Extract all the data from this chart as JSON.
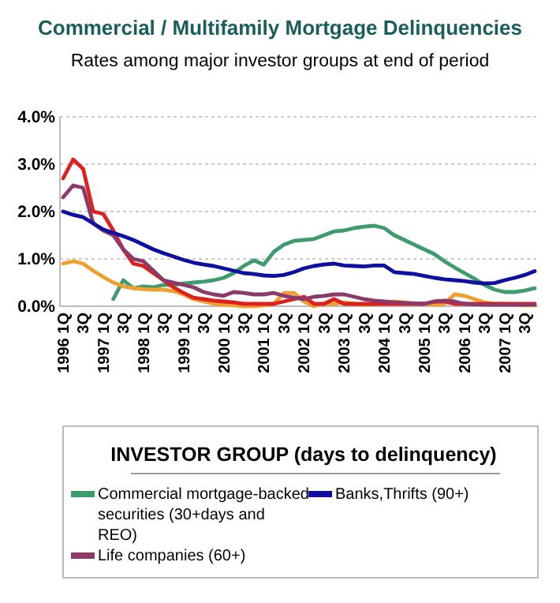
{
  "chart_data": {
    "type": "line",
    "title": "Commercial / Multifamily Mortgage Delinquencies",
    "subtitle": "Rates among major investor groups at end of period",
    "legend_title": "INVESTOR GROUP (days to delinquency)",
    "categories": [
      "1996 1Q",
      null,
      "3Q",
      null,
      "1997 1Q",
      null,
      "3Q",
      null,
      "1998 1Q",
      null,
      "3Q",
      null,
      "1999 1Q",
      null,
      "3Q",
      null,
      "2000 1Q",
      null,
      "3Q",
      null,
      "2001 1Q",
      null,
      "3Q",
      null,
      "2002 1Q",
      null,
      "3Q",
      null,
      "2003 1Q",
      null,
      "3Q",
      null,
      "2004 1Q",
      null,
      "3Q",
      null,
      "2005 1Q",
      null,
      "3Q",
      null,
      "2006 1Q",
      null,
      "3Q",
      null,
      "2007 1Q",
      null,
      "3Q",
      null
    ],
    "series": [
      {
        "name": "Commercial mortgage-backed securities (30+days and REO)",
        "color": "#3f9a6e",
        "values": [
          null,
          null,
          null,
          null,
          null,
          0.15,
          0.55,
          0.38,
          0.42,
          0.4,
          0.45,
          0.45,
          0.48,
          0.5,
          0.52,
          0.55,
          0.6,
          0.7,
          0.85,
          0.97,
          0.88,
          1.15,
          1.3,
          1.38,
          1.4,
          1.42,
          1.5,
          1.58,
          1.6,
          1.65,
          1.68,
          1.7,
          1.65,
          1.5,
          1.4,
          1.3,
          1.2,
          1.1,
          0.95,
          0.82,
          0.7,
          0.58,
          0.45,
          0.35,
          0.3,
          0.3,
          0.33,
          0.38
        ]
      },
      {
        "color": "#f0a030",
        "values": [
          0.9,
          0.95,
          0.9,
          0.75,
          0.62,
          0.5,
          0.42,
          0.38,
          0.36,
          0.35,
          0.35,
          0.32,
          0.25,
          0.15,
          0.1,
          0.05,
          0.03,
          0.02,
          0.0,
          0.0,
          0.02,
          0.05,
          0.28,
          0.28,
          0.1,
          0.0,
          0.05,
          0.05,
          0.08,
          0.05,
          0.03,
          0.05,
          0.08,
          0.1,
          0.08,
          0.06,
          0.05,
          0.03,
          0.05,
          0.25,
          0.22,
          0.15,
          0.08,
          0.05,
          0.05,
          0.03,
          0.02,
          0.02
        ]
      },
      {
        "color": "#dd2020",
        "values": [
          2.7,
          3.1,
          2.9,
          2.0,
          1.95,
          1.6,
          1.2,
          0.9,
          0.85,
          0.7,
          0.55,
          0.4,
          0.28,
          0.18,
          0.15,
          0.12,
          0.1,
          0.08,
          0.05,
          0.05,
          0.05,
          0.05,
          0.1,
          0.15,
          0.2,
          0.05,
          0.05,
          0.15,
          0.05,
          0.05,
          0.05,
          0.05,
          0.05,
          0.05,
          0.05,
          0.05,
          0.05,
          0.1,
          0.1,
          0.05,
          0.05,
          0.05,
          0.05,
          0.05,
          0.05,
          0.05,
          0.05,
          0.05
        ]
      },
      {
        "name": "Life companies (60+)",
        "color": "#8b3a6a",
        "values": [
          2.3,
          2.55,
          2.5,
          1.75,
          1.6,
          1.5,
          1.2,
          1.0,
          0.95,
          0.75,
          0.55,
          0.5,
          0.45,
          0.4,
          0.3,
          0.25,
          0.22,
          0.3,
          0.28,
          0.25,
          0.25,
          0.28,
          0.22,
          0.18,
          0.15,
          0.2,
          0.22,
          0.25,
          0.25,
          0.2,
          0.15,
          0.12,
          0.1,
          0.08,
          0.07,
          0.06,
          0.05,
          0.1,
          0.12,
          0.1,
          0.05,
          0.04,
          0.03,
          0.03,
          0.03,
          0.03,
          0.03,
          0.03
        ]
      },
      {
        "name": "Banks,Thrifts (90+)",
        "color": "#1010a0",
        "values": [
          2.0,
          1.93,
          1.88,
          1.75,
          1.62,
          1.55,
          1.48,
          1.4,
          1.3,
          1.2,
          1.12,
          1.05,
          0.98,
          0.92,
          0.88,
          0.85,
          0.8,
          0.75,
          0.7,
          0.68,
          0.65,
          0.64,
          0.66,
          0.72,
          0.8,
          0.85,
          0.88,
          0.9,
          0.86,
          0.85,
          0.84,
          0.86,
          0.86,
          0.72,
          0.7,
          0.68,
          0.64,
          0.6,
          0.57,
          0.55,
          0.53,
          0.5,
          0.48,
          0.49,
          0.55,
          0.6,
          0.66,
          0.74
        ]
      }
    ],
    "ylim": [
      0,
      4
    ],
    "yticks": [
      {
        "value": 0,
        "label": "0.0%"
      },
      {
        "value": 1,
        "label": "1.0%"
      },
      {
        "value": 2,
        "label": "2.0%"
      },
      {
        "value": 3,
        "label": "3.0%"
      },
      {
        "value": 4,
        "label": "4.0%"
      }
    ],
    "grid": "y",
    "legend": "bottom",
    "marker": "none",
    "line_style": "solid"
  }
}
